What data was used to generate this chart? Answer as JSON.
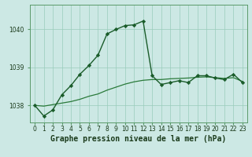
{
  "title": "Graphe pression niveau de la mer (hPa)",
  "bg_color": "#cce8e4",
  "grid_color": "#99ccbb",
  "line_color": "#1a5c2a",
  "line2_color": "#2a7a3a",
  "xlim_min": -0.5,
  "xlim_max": 23.5,
  "ylim_min": 1037.55,
  "ylim_max": 1040.65,
  "yticks": [
    1038,
    1039,
    1040
  ],
  "xticks": [
    0,
    1,
    2,
    3,
    4,
    5,
    6,
    7,
    8,
    9,
    10,
    11,
    12,
    13,
    14,
    15,
    16,
    17,
    18,
    19,
    20,
    21,
    22,
    23
  ],
  "series1_x": [
    0,
    1,
    2,
    3,
    4,
    5,
    6,
    7,
    8,
    9,
    10,
    11,
    12,
    13,
    14,
    15,
    16,
    17,
    18,
    19,
    20,
    21,
    22,
    23
  ],
  "series1_y": [
    1038.0,
    1037.72,
    1037.88,
    1038.28,
    1038.52,
    1038.82,
    1039.05,
    1039.32,
    1039.88,
    1040.0,
    1040.1,
    1040.12,
    1040.22,
    1038.78,
    1038.55,
    1038.6,
    1038.65,
    1038.6,
    1038.78,
    1038.78,
    1038.72,
    1038.68,
    1038.82,
    1038.6
  ],
  "series2_x": [
    0,
    1,
    2,
    3,
    4,
    5,
    6,
    7,
    8,
    9,
    10,
    11,
    12,
    13,
    14,
    15,
    16,
    17,
    18,
    19,
    20,
    21,
    22,
    23
  ],
  "series2_y": [
    1038.0,
    1037.98,
    1038.02,
    1038.06,
    1038.1,
    1038.16,
    1038.24,
    1038.3,
    1038.4,
    1038.48,
    1038.56,
    1038.62,
    1038.66,
    1038.68,
    1038.68,
    1038.7,
    1038.71,
    1038.72,
    1038.74,
    1038.75,
    1038.73,
    1038.71,
    1038.73,
    1038.63
  ],
  "tick_fontsize": 5.5,
  "title_fontsize": 7.0
}
